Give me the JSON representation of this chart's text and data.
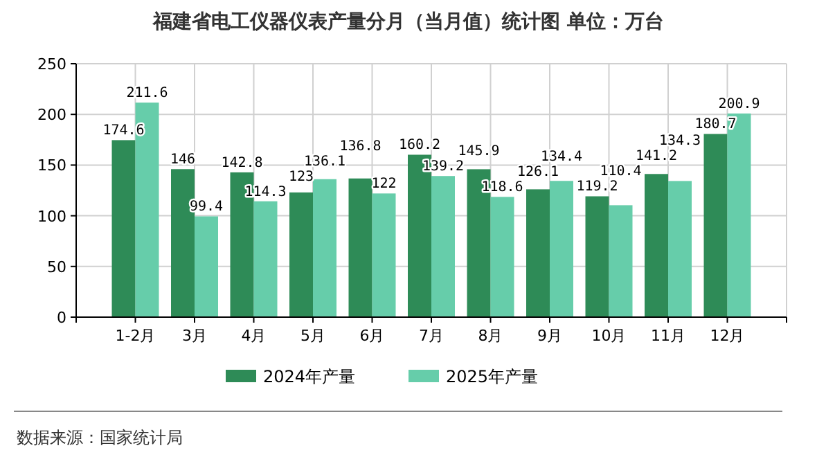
{
  "chart_data": {
    "type": "bar",
    "title": "福建省电工仪器仪表产量分月（当月值）统计图 单位：万台",
    "categories": [
      "1-2月",
      "3月",
      "4月",
      "5月",
      "6月",
      "7月",
      "8月",
      "9月",
      "10月",
      "11月",
      "12月"
    ],
    "series": [
      {
        "name": "2024年产量",
        "color": "#2e8b57",
        "values": [
          174.6,
          146,
          142.8,
          123,
          136.8,
          160.2,
          145.9,
          126.1,
          119.2,
          141.2,
          180.7
        ]
      },
      {
        "name": "2025年产量",
        "color": "#66cdaa",
        "values": [
          211.6,
          99.4,
          114.3,
          136.1,
          122,
          139.2,
          118.6,
          134.4,
          110.4,
          134.3,
          200.9
        ]
      }
    ],
    "ylim": [
      0,
      250
    ],
    "yticks": [
      0,
      50,
      100,
      150,
      200,
      250
    ],
    "grid": true,
    "legend": "bottom",
    "data_labels": true,
    "annotations": [
      "数据来源：国家统计局"
    ]
  }
}
